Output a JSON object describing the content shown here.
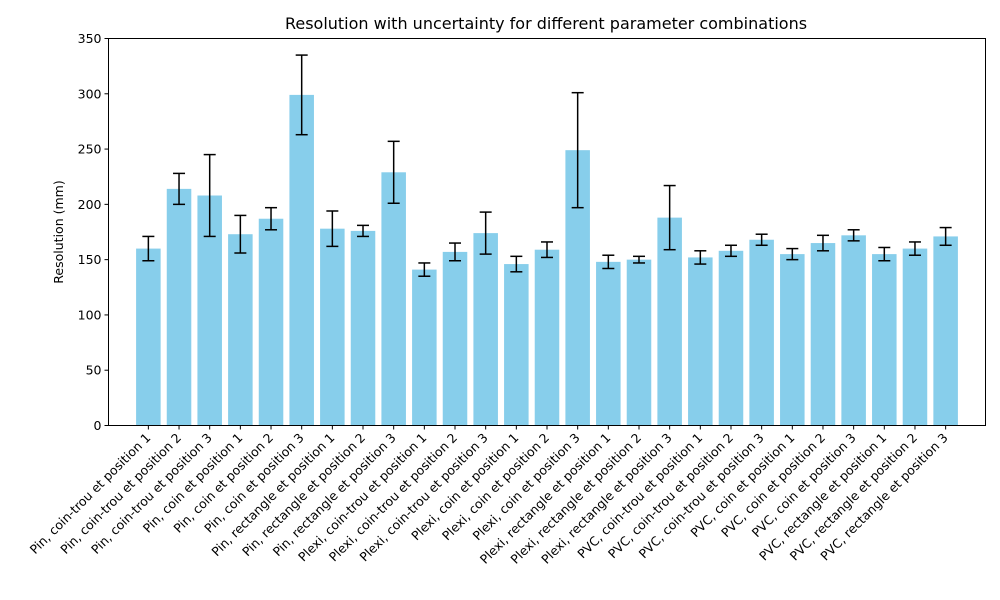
{
  "chart_data": {
    "type": "bar",
    "title": "Resolution with uncertainty for different parameter combinations",
    "xlabel": "",
    "ylabel": "Resolution (mm)",
    "ylim": [
      0,
      350
    ],
    "yticks": [
      0,
      50,
      100,
      150,
      200,
      250,
      300,
      350
    ],
    "grid": false,
    "bar_color": "#87ceeb",
    "error_color": "#000000",
    "categories": [
      "Pin, coin-trou et position 1",
      "Pin, coin-trou et position 2",
      "Pin, coin-trou et position 3",
      "Pin, coin et position 1",
      "Pin, coin et position 2",
      "Pin, coin et position 3",
      "Pin, rectangle et position 1",
      "Pin, rectangle et position 2",
      "Pin, rectangle et position 3",
      "Plexi, coin-trou et position 1",
      "Plexi, coin-trou et position 2",
      "Plexi, coin-trou et position 3",
      "Plexi, coin et position 1",
      "Plexi, coin et position 2",
      "Plexi, coin et position 3",
      "Plexi, rectangle et position 1",
      "Plexi, rectangle et position 2",
      "Plexi, rectangle et position 3",
      "PVC, coin-trou et position 1",
      "PVC, coin-trou et position 2",
      "PVC, coin-trou et position 3",
      "PVC, coin et position 1",
      "PVC, coin et position 2",
      "PVC, coin et position 3",
      "PVC, rectangle et position 1",
      "PVC, rectangle et position 2",
      "PVC, rectangle et position 3"
    ],
    "values": [
      160,
      214,
      208,
      173,
      187,
      299,
      178,
      176,
      229,
      141,
      157,
      174,
      146,
      159,
      249,
      148,
      150,
      188,
      152,
      158,
      168,
      155,
      165,
      172,
      155,
      160,
      171
    ],
    "errors": [
      11,
      14,
      37,
      17,
      10,
      36,
      16,
      5,
      28,
      6,
      8,
      19,
      7,
      7,
      52,
      6,
      3,
      29,
      6,
      5,
      5,
      5,
      7,
      5,
      6,
      6,
      8
    ]
  }
}
